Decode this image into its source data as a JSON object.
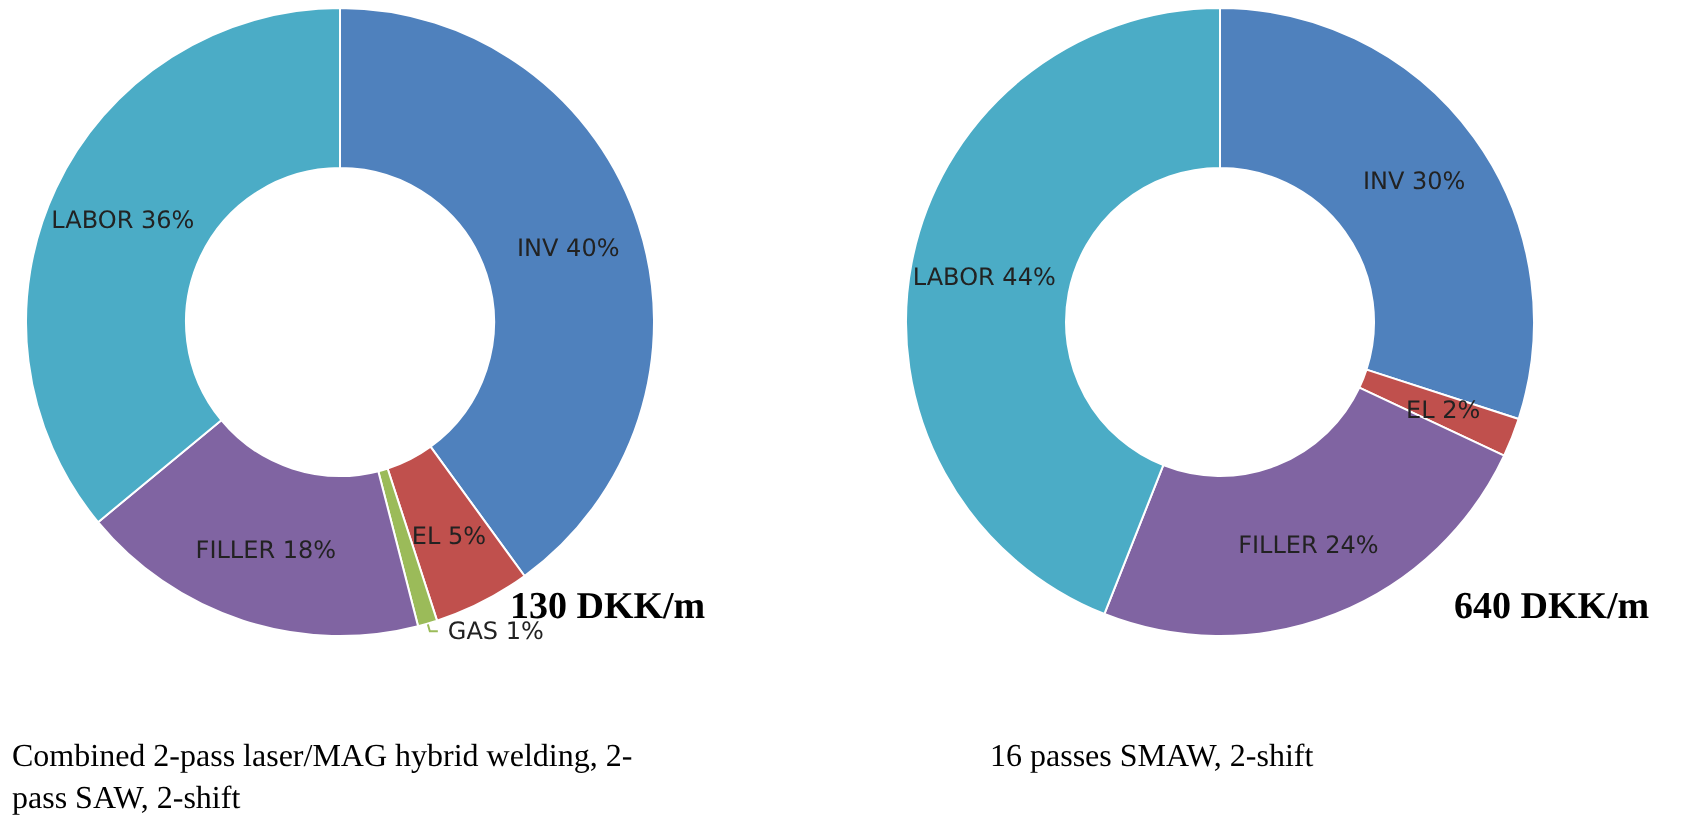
{
  "chart_data": [
    {
      "type": "donut",
      "categories": [
        "INV",
        "EL",
        "GAS",
        "FILLER",
        "LABOR"
      ],
      "values": [
        40,
        5,
        1,
        18,
        36
      ],
      "value_labels": [
        "40%",
        "5%",
        "1%",
        "18%",
        "36%"
      ],
      "colors": [
        "#4f81bd",
        "#c0504d",
        "#9bbb59",
        "#8064a2",
        "#4bacc6"
      ],
      "legend": false,
      "annotations": [
        "130 DKK/m",
        "Combined 2-pass laser/MAG hybrid welding, 2-pass SAW, 2-shift"
      ]
    },
    {
      "type": "donut",
      "categories": [
        "INV",
        "EL",
        "FILLER",
        "LABOR"
      ],
      "values": [
        30,
        2,
        24,
        44
      ],
      "value_labels": [
        "30%",
        "2%",
        "24%",
        "44%"
      ],
      "colors": [
        "#4f81bd",
        "#c0504d",
        "#8064a2",
        "#4bacc6"
      ],
      "legend": false,
      "annotations": [
        "640 DKK/m",
        "16 passes SMAW, 2-shift"
      ]
    }
  ]
}
